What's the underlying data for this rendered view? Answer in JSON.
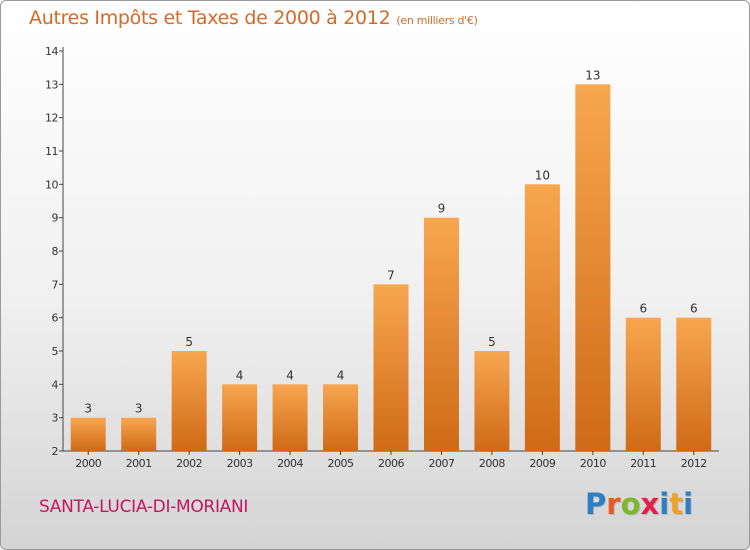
{
  "title": "Autres Impôts et Taxes de 2000 à 2012",
  "subtitle": "(en milliers d'€)",
  "town": "SANTA-LUCIA-DI-MORIANI",
  "logo": {
    "letters": [
      "P",
      "r",
      "o",
      "x",
      "i",
      "t",
      "i"
    ],
    "colors": [
      "#2e7fc1",
      "#e85a1e",
      "#7cb829",
      "#e81e4a",
      "#2e7fc1",
      "#f0a022",
      "#2e7fc1"
    ]
  },
  "colors": {
    "bar_top": "#f8a650",
    "bar_bottom": "#cf6a16",
    "title": "#d46a28",
    "town": "#c2185b"
  },
  "chart_data": {
    "type": "bar",
    "categories": [
      "2000",
      "2001",
      "2002",
      "2003",
      "2004",
      "2005",
      "2006",
      "2007",
      "2008",
      "2009",
      "2010",
      "2011",
      "2012"
    ],
    "values": [
      3,
      3,
      5,
      4,
      4,
      4,
      7,
      9,
      5,
      10,
      13,
      6,
      6
    ],
    "value_labels": [
      "3",
      "3",
      "5",
      "4",
      "4",
      "4",
      "7",
      "9",
      "5",
      "10",
      "13",
      "6",
      "6"
    ],
    "y_ticks": [
      "2",
      "3",
      "4",
      "5",
      "6",
      "7",
      "8",
      "9",
      "10",
      "11",
      "12",
      "13",
      "14"
    ],
    "title": "Autres Impôts et Taxes de 2000 à 2012",
    "subtitle": "(en milliers d'€)",
    "xlabel": "",
    "ylabel": "",
    "ylim": [
      2,
      14
    ],
    "grid": false,
    "legend": "none"
  }
}
